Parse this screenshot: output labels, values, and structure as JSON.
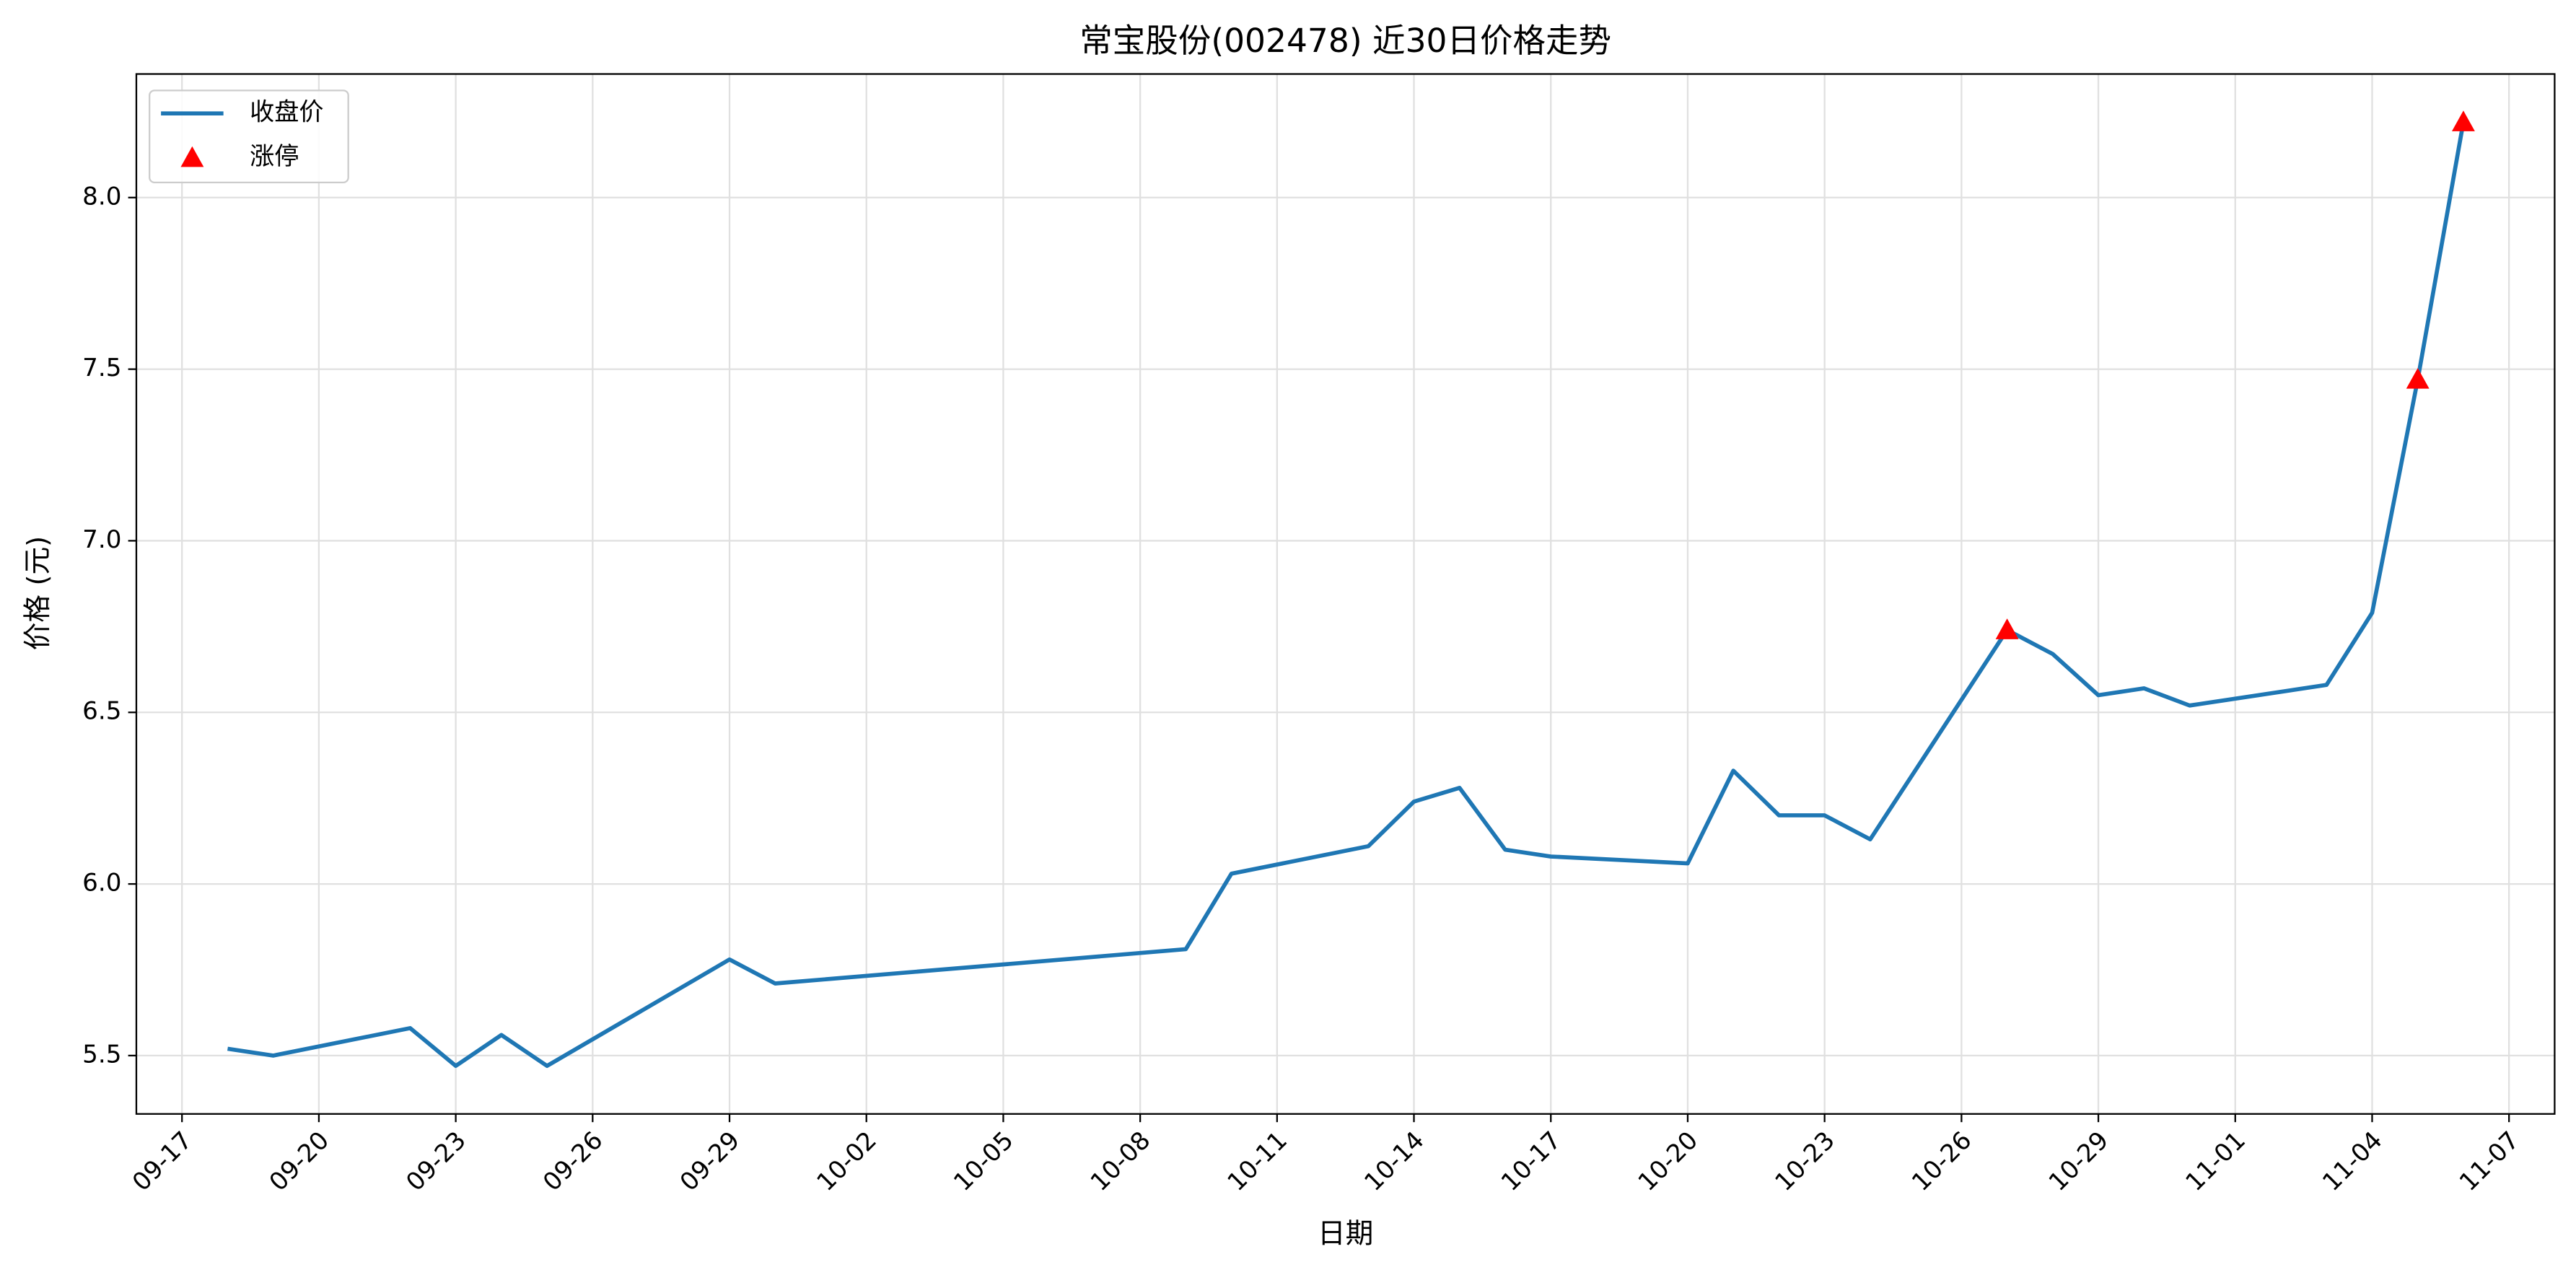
{
  "chart_data": {
    "type": "line",
    "title": "常宝股份(002478) 近30日价格走势",
    "x_label": "日期",
    "y_label": "价格 (元)",
    "x": [
      "09-18",
      "09-19",
      "09-22",
      "09-23",
      "09-24",
      "09-25",
      "09-29",
      "09-30",
      "10-09",
      "10-10",
      "10-13",
      "10-14",
      "10-15",
      "10-16",
      "10-17",
      "10-20",
      "10-21",
      "10-22",
      "10-23",
      "10-24",
      "10-27",
      "10-28",
      "10-29",
      "10-30",
      "10-31",
      "11-03",
      "11-04",
      "11-05",
      "11-06"
    ],
    "series": [
      {
        "name": "收盘价",
        "color": "#1f77b4",
        "type": "line",
        "values": [
          5.52,
          5.5,
          5.58,
          5.47,
          5.56,
          5.47,
          5.78,
          5.71,
          5.81,
          6.03,
          6.11,
          6.24,
          6.28,
          6.1,
          6.08,
          6.06,
          6.33,
          6.2,
          6.2,
          6.13,
          6.74,
          6.67,
          6.55,
          6.57,
          6.52,
          6.58,
          6.79,
          7.47,
          8.22
        ]
      },
      {
        "name": "涨停",
        "color": "#ff0000",
        "type": "scatter",
        "marker": "triangle",
        "x": [
          "10-27",
          "11-05",
          "11-06"
        ],
        "values": [
          6.74,
          7.47,
          8.22
        ]
      }
    ],
    "xlim": [
      "09-16",
      "11-08"
    ],
    "xticks": [
      "09-17",
      "09-20",
      "09-23",
      "09-26",
      "09-29",
      "10-02",
      "10-05",
      "10-08",
      "10-11",
      "10-14",
      "10-17",
      "10-20",
      "10-23",
      "10-26",
      "10-29",
      "11-01",
      "11-04",
      "11-07"
    ],
    "ylim": [
      5.33,
      8.36
    ],
    "yticks": [
      5.5,
      {
        "value": 6,
        "label": "6.0"
      },
      6.5,
      {
        "value": 7,
        "label": "7.0"
      },
      7.5,
      {
        "value": 8,
        "label": "8.0"
      }
    ],
    "grid": true,
    "legend": "upper left"
  }
}
